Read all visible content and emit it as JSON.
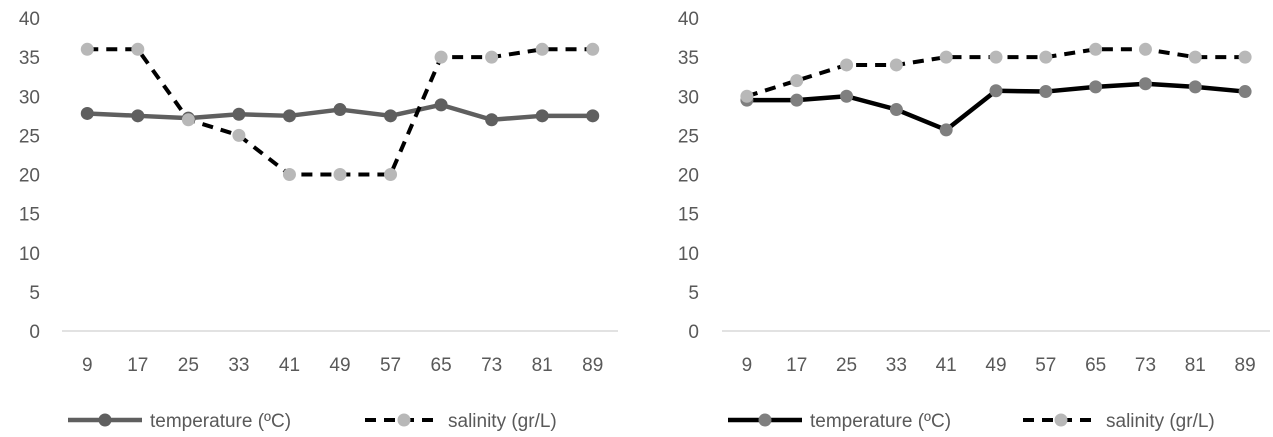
{
  "chart_data": [
    {
      "type": "line",
      "x": [
        9,
        17,
        25,
        33,
        41,
        49,
        57,
        65,
        73,
        81,
        89
      ],
      "ylim": [
        0,
        40
      ],
      "yticks": [
        0,
        5,
        10,
        15,
        20,
        25,
        30,
        35,
        40
      ],
      "grid": false,
      "legend": "bottom",
      "series": [
        {
          "name": "temperature (ºC)",
          "values": [
            27.8,
            27.5,
            27.2,
            27.7,
            27.5,
            28.3,
            27.5,
            28.9,
            27.0,
            27.5,
            27.5
          ],
          "line_color": "#5f5f5f",
          "marker_color": "#5f5f5f",
          "dashed": false
        },
        {
          "name": "salinity (gr/L)",
          "values": [
            36,
            36,
            27,
            25,
            20,
            20,
            20,
            35,
            35,
            36,
            36
          ],
          "line_color": "#000000",
          "marker_color": "#b8b8b8",
          "dashed": true
        }
      ]
    },
    {
      "type": "line",
      "x": [
        9,
        17,
        25,
        33,
        41,
        49,
        57,
        65,
        73,
        81,
        89
      ],
      "ylim": [
        0,
        40
      ],
      "yticks": [
        0,
        5,
        10,
        15,
        20,
        25,
        30,
        35,
        40
      ],
      "grid": false,
      "legend": "bottom",
      "series": [
        {
          "name": "temperature (ºC)",
          "values": [
            29.5,
            29.5,
            30.0,
            28.3,
            25.7,
            30.7,
            30.6,
            31.2,
            31.6,
            31.2,
            30.6
          ],
          "line_color": "#000000",
          "marker_color": "#7f7f7f",
          "dashed": false
        },
        {
          "name": "salinity (gr/L)",
          "values": [
            30,
            32,
            34,
            34,
            35,
            35,
            35,
            36,
            36,
            35,
            35
          ],
          "line_color": "#000000",
          "marker_color": "#b8b8b8",
          "dashed": true
        }
      ]
    }
  ]
}
